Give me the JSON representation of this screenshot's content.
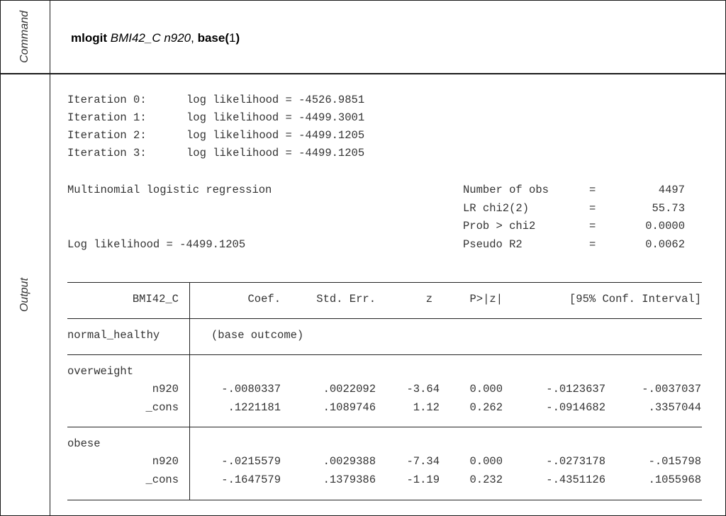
{
  "labels": {
    "command": "Command",
    "output": "Output"
  },
  "command": {
    "keyword": "mlogit",
    "args": "BMI42_C n920",
    "sep": ", ",
    "opt": "base",
    "open": "(",
    "optval": "1",
    "close": ")"
  },
  "iterations": [
    {
      "label": "Iteration 0:",
      "text": "log likelihood = -4526.9851"
    },
    {
      "label": "Iteration 1:",
      "text": "log likelihood = -4499.3001"
    },
    {
      "label": "Iteration 2:",
      "text": "log likelihood = -4499.1205"
    },
    {
      "label": "Iteration 3:",
      "text": "log likelihood = -4499.1205"
    }
  ],
  "header": {
    "model": "Multinomial logistic regression",
    "loglik": "Log likelihood = -4499.1205",
    "stats": [
      {
        "name": "Number of obs",
        "eq": "=",
        "value": "4497"
      },
      {
        "name": "LR chi2(2)",
        "eq": "=",
        "value": "55.73"
      },
      {
        "name": "Prob > chi2",
        "eq": "=",
        "value": "0.0000"
      },
      {
        "name": "Pseudo R2",
        "eq": "=",
        "value": "0.0062"
      }
    ]
  },
  "table": {
    "depvar": "BMI42_C",
    "columns": [
      "Coef.",
      "Std. Err.",
      "z",
      "P>|z|",
      "[95% Conf. Interval]"
    ],
    "base": {
      "name": "normal_healthy",
      "note": "(base outcome)"
    },
    "groups": [
      {
        "name": "overweight",
        "rows": [
          {
            "var": "n920",
            "coef": "-.0080337",
            "se": ".0022092",
            "z": "-3.64",
            "p": "0.000",
            "lo": "-.0123637",
            "hi": "-.0037037"
          },
          {
            "var": "_cons",
            "coef": ".1221181",
            "se": ".1089746",
            "z": "1.12",
            "p": "0.262",
            "lo": "-.0914682",
            "hi": ".3357044"
          }
        ]
      },
      {
        "name": "obese",
        "rows": [
          {
            "var": "n920",
            "coef": "-.0215579",
            "se": ".0029388",
            "z": "-7.34",
            "p": "0.000",
            "lo": "-.0273178",
            "hi": "-.015798"
          },
          {
            "var": "_cons",
            "coef": "-.1647579",
            "se": ".1379386",
            "z": "-1.19",
            "p": "0.232",
            "lo": "-.4351126",
            "hi": ".1055968"
          }
        ]
      }
    ]
  }
}
